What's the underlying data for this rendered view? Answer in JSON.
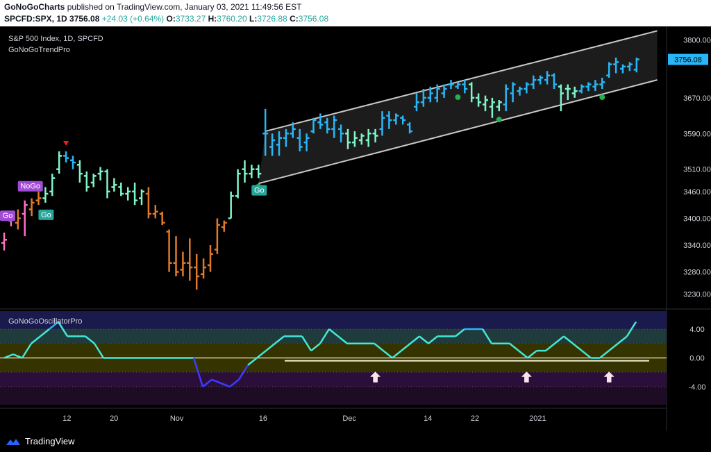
{
  "header": {
    "publisher": "GoNoGoCharts",
    "published_text": "published on TradingView.com, January 03, 2021 11:49:56 EST",
    "symbol": "SPCFD:SPX, 1D",
    "last": "3756.08",
    "change": "+24.03 (+0.64%)",
    "open_label": "O:",
    "open": "3733.27",
    "high_label": "H:",
    "high": "3760.20",
    "low_label": "L:",
    "low": "3726.88",
    "close_label": "C:",
    "close": "3756.08"
  },
  "main_pane": {
    "title": "S&P 500 Index, 1D, SPCFD",
    "indicator": "GoNoGoTrendPro",
    "price_badge": "3756.08",
    "badges": [
      {
        "text": "NoGo",
        "bar": 3
      },
      {
        "text": "Go",
        "bar": 6
      },
      {
        "text": "Go",
        "bar": 37
      },
      {
        "text": "Go",
        "bar": -1
      }
    ]
  },
  "oscillator_pane": {
    "title": "GoNoGoOscillatorPro"
  },
  "footer": {
    "brand": "TradingView"
  },
  "colors": {
    "bright_blue": "#29b6f6",
    "dark_blue": "#1e88e5",
    "aqua": "#80f5c8",
    "orange": "#e07a2a",
    "pink": "#ff70c0",
    "purple": "#a24bd5",
    "green_dot": "#22b14c",
    "red_arrow": "#ff1a1a",
    "osc_line": "#44e6d8",
    "osc_low": "#3c3cff"
  },
  "chart_data": [
    {
      "type": "ohlc",
      "price_axis": {
        "min": 3200,
        "max": 3830,
        "ticks": [
          3800,
          3670,
          3590,
          3510,
          3460,
          3400,
          3340,
          3280,
          3230
        ]
      },
      "time_axis_labels": [
        "12",
        "20",
        "Nov",
        "16",
        "Dec",
        "14",
        "22",
        "2021"
      ],
      "time_axis_positions": [
        8,
        14,
        22,
        33,
        44,
        54,
        60,
        68
      ],
      "bars": [
        {
          "o": 3345,
          "h": 3368,
          "l": 3328,
          "c": 3352,
          "color": "pink"
        },
        {
          "o": 3395,
          "h": 3408,
          "l": 3382,
          "c": 3400,
          "color": "pink"
        },
        {
          "o": 3390,
          "h": 3420,
          "l": 3375,
          "c": 3400,
          "color": "orange"
        },
        {
          "o": 3410,
          "h": 3440,
          "l": 3360,
          "c": 3430,
          "color": "pink"
        },
        {
          "o": 3420,
          "h": 3445,
          "l": 3405,
          "c": 3435,
          "color": "orange"
        },
        {
          "o": 3440,
          "h": 3460,
          "l": 3430,
          "c": 3445,
          "color": "orange"
        },
        {
          "o": 3445,
          "h": 3470,
          "l": 3435,
          "c": 3455,
          "color": "aqua"
        },
        {
          "o": 3460,
          "h": 3500,
          "l": 3450,
          "c": 3490,
          "color": "aqua"
        },
        {
          "o": 3510,
          "h": 3550,
          "l": 3500,
          "c": 3540,
          "color": "aqua"
        },
        {
          "o": 3540,
          "h": 3550,
          "l": 3525,
          "c": 3535,
          "color": "bright_blue"
        },
        {
          "o": 3530,
          "h": 3540,
          "l": 3510,
          "c": 3525,
          "color": "bright_blue"
        },
        {
          "o": 3520,
          "h": 3530,
          "l": 3480,
          "c": 3500,
          "color": "aqua"
        },
        {
          "o": 3495,
          "h": 3505,
          "l": 3460,
          "c": 3470,
          "color": "aqua"
        },
        {
          "o": 3480,
          "h": 3500,
          "l": 3470,
          "c": 3495,
          "color": "aqua"
        },
        {
          "o": 3500,
          "h": 3515,
          "l": 3485,
          "c": 3505,
          "color": "aqua"
        },
        {
          "o": 3505,
          "h": 3510,
          "l": 3445,
          "c": 3460,
          "color": "aqua"
        },
        {
          "o": 3470,
          "h": 3490,
          "l": 3460,
          "c": 3475,
          "color": "aqua"
        },
        {
          "o": 3470,
          "h": 3480,
          "l": 3450,
          "c": 3455,
          "color": "aqua"
        },
        {
          "o": 3455,
          "h": 3470,
          "l": 3440,
          "c": 3460,
          "color": "aqua"
        },
        {
          "o": 3460,
          "h": 3480,
          "l": 3430,
          "c": 3440,
          "color": "aqua"
        },
        {
          "o": 3445,
          "h": 3465,
          "l": 3430,
          "c": 3460,
          "color": "aqua"
        },
        {
          "o": 3455,
          "h": 3470,
          "l": 3400,
          "c": 3410,
          "color": "orange"
        },
        {
          "o": 3410,
          "h": 3430,
          "l": 3400,
          "c": 3415,
          "color": "orange"
        },
        {
          "o": 3410,
          "h": 3415,
          "l": 3385,
          "c": 3390,
          "color": "orange"
        },
        {
          "o": 3370,
          "h": 3375,
          "l": 3280,
          "c": 3300,
          "color": "orange"
        },
        {
          "o": 3300,
          "h": 3360,
          "l": 3270,
          "c": 3280,
          "color": "orange"
        },
        {
          "o": 3285,
          "h": 3325,
          "l": 3270,
          "c": 3300,
          "color": "orange"
        },
        {
          "o": 3300,
          "h": 3355,
          "l": 3260,
          "c": 3290,
          "color": "orange"
        },
        {
          "o": 3290,
          "h": 3320,
          "l": 3240,
          "c": 3270,
          "color": "orange"
        },
        {
          "o": 3275,
          "h": 3310,
          "l": 3265,
          "c": 3290,
          "color": "orange"
        },
        {
          "o": 3295,
          "h": 3340,
          "l": 3280,
          "c": 3320,
          "color": "orange"
        },
        {
          "o": 3330,
          "h": 3400,
          "l": 3320,
          "c": 3385,
          "color": "orange"
        },
        {
          "o": 3380,
          "h": 3395,
          "l": 3370,
          "c": 3390,
          "color": "orange"
        },
        {
          "o": 3400,
          "h": 3460,
          "l": 3400,
          "c": 3450,
          "color": "aqua"
        },
        {
          "o": 3450,
          "h": 3510,
          "l": 3445,
          "c": 3500,
          "color": "aqua"
        },
        {
          "o": 3510,
          "h": 3530,
          "l": 3480,
          "c": 3500,
          "color": "aqua"
        },
        {
          "o": 3500,
          "h": 3520,
          "l": 3490,
          "c": 3510,
          "color": "aqua"
        },
        {
          "o": 3510,
          "h": 3520,
          "l": 3490,
          "c": 3500,
          "color": "aqua"
        },
        {
          "o": 3590,
          "h": 3645,
          "l": 3540,
          "c": 3590,
          "color": "bright_blue"
        },
        {
          "o": 3560,
          "h": 3590,
          "l": 3540,
          "c": 3575,
          "color": "bright_blue"
        },
        {
          "o": 3565,
          "h": 3595,
          "l": 3540,
          "c": 3580,
          "color": "bright_blue"
        },
        {
          "o": 3580,
          "h": 3600,
          "l": 3560,
          "c": 3590,
          "color": "bright_blue"
        },
        {
          "o": 3590,
          "h": 3615,
          "l": 3580,
          "c": 3600,
          "color": "bright_blue"
        },
        {
          "o": 3580,
          "h": 3600,
          "l": 3550,
          "c": 3560,
          "color": "bright_blue"
        },
        {
          "o": 3570,
          "h": 3590,
          "l": 3550,
          "c": 3580,
          "color": "bright_blue"
        },
        {
          "o": 3595,
          "h": 3625,
          "l": 3590,
          "c": 3620,
          "color": "bright_blue"
        },
        {
          "o": 3615,
          "h": 3635,
          "l": 3600,
          "c": 3610,
          "color": "bright_blue"
        },
        {
          "o": 3615,
          "h": 3625,
          "l": 3590,
          "c": 3600,
          "color": "bright_blue"
        },
        {
          "o": 3600,
          "h": 3630,
          "l": 3580,
          "c": 3620,
          "color": "bright_blue"
        },
        {
          "o": 3600,
          "h": 3610,
          "l": 3570,
          "c": 3590,
          "color": "bright_blue"
        },
        {
          "o": 3590,
          "h": 3600,
          "l": 3555,
          "c": 3570,
          "color": "aqua"
        },
        {
          "o": 3570,
          "h": 3595,
          "l": 3560,
          "c": 3580,
          "color": "aqua"
        },
        {
          "o": 3575,
          "h": 3590,
          "l": 3565,
          "c": 3585,
          "color": "aqua"
        },
        {
          "o": 3575,
          "h": 3600,
          "l": 3560,
          "c": 3590,
          "color": "aqua"
        },
        {
          "o": 3590,
          "h": 3600,
          "l": 3570,
          "c": 3585,
          "color": "aqua"
        },
        {
          "o": 3600,
          "h": 3640,
          "l": 3585,
          "c": 3625,
          "color": "bright_blue"
        },
        {
          "o": 3630,
          "h": 3640,
          "l": 3600,
          "c": 3620,
          "color": "bright_blue"
        },
        {
          "o": 3620,
          "h": 3635,
          "l": 3610,
          "c": 3630,
          "color": "bright_blue"
        },
        {
          "o": 3625,
          "h": 3630,
          "l": 3610,
          "c": 3620,
          "color": "bright_blue"
        },
        {
          "o": 3610,
          "h": 3615,
          "l": 3590,
          "c": 3595,
          "color": "bright_blue"
        },
        {
          "o": 3650,
          "h": 3680,
          "l": 3640,
          "c": 3660,
          "color": "bright_blue"
        },
        {
          "o": 3660,
          "h": 3690,
          "l": 3650,
          "c": 3670,
          "color": "bright_blue"
        },
        {
          "o": 3670,
          "h": 3695,
          "l": 3660,
          "c": 3680,
          "color": "bright_blue"
        },
        {
          "o": 3670,
          "h": 3700,
          "l": 3660,
          "c": 3690,
          "color": "bright_blue"
        },
        {
          "o": 3680,
          "h": 3700,
          "l": 3670,
          "c": 3690,
          "color": "bright_blue"
        },
        {
          "o": 3700,
          "h": 3710,
          "l": 3690,
          "c": 3700,
          "color": "bright_blue"
        },
        {
          "o": 3695,
          "h": 3705,
          "l": 3690,
          "c": 3700,
          "color": "bright_blue"
        },
        {
          "o": 3700,
          "h": 3710,
          "l": 3680,
          "c": 3690,
          "color": "bright_blue"
        },
        {
          "o": 3700,
          "h": 3705,
          "l": 3660,
          "c": 3670,
          "color": "aqua"
        },
        {
          "o": 3670,
          "h": 3680,
          "l": 3650,
          "c": 3660,
          "color": "aqua"
        },
        {
          "o": 3655,
          "h": 3675,
          "l": 3640,
          "c": 3665,
          "color": "aqua"
        },
        {
          "o": 3650,
          "h": 3670,
          "l": 3625,
          "c": 3660,
          "color": "aqua"
        },
        {
          "o": 3650,
          "h": 3665,
          "l": 3640,
          "c": 3660,
          "color": "aqua"
        },
        {
          "o": 3655,
          "h": 3700,
          "l": 3640,
          "c": 3690,
          "color": "bright_blue"
        },
        {
          "o": 3680,
          "h": 3705,
          "l": 3660,
          "c": 3700,
          "color": "bright_blue"
        },
        {
          "o": 3685,
          "h": 3695,
          "l": 3675,
          "c": 3690,
          "color": "bright_blue"
        },
        {
          "o": 3690,
          "h": 3705,
          "l": 3680,
          "c": 3700,
          "color": "bright_blue"
        },
        {
          "o": 3700,
          "h": 3720,
          "l": 3690,
          "c": 3710,
          "color": "bright_blue"
        },
        {
          "o": 3710,
          "h": 3720,
          "l": 3700,
          "c": 3715,
          "color": "bright_blue"
        },
        {
          "o": 3710,
          "h": 3730,
          "l": 3700,
          "c": 3720,
          "color": "bright_blue"
        },
        {
          "o": 3720,
          "h": 3725,
          "l": 3690,
          "c": 3700,
          "color": "bright_blue"
        },
        {
          "o": 3695,
          "h": 3700,
          "l": 3640,
          "c": 3680,
          "color": "aqua"
        },
        {
          "o": 3690,
          "h": 3700,
          "l": 3665,
          "c": 3690,
          "color": "aqua"
        },
        {
          "o": 3680,
          "h": 3695,
          "l": 3670,
          "c": 3685,
          "color": "aqua"
        },
        {
          "o": 3685,
          "h": 3700,
          "l": 3680,
          "c": 3695,
          "color": "bright_blue"
        },
        {
          "o": 3695,
          "h": 3705,
          "l": 3685,
          "c": 3700,
          "color": "bright_blue"
        },
        {
          "o": 3695,
          "h": 3710,
          "l": 3685,
          "c": 3700,
          "color": "bright_blue"
        },
        {
          "o": 3700,
          "h": 3715,
          "l": 3690,
          "c": 3705,
          "color": "bright_blue"
        },
        {
          "o": 3720,
          "h": 3750,
          "l": 3715,
          "c": 3745,
          "color": "bright_blue"
        },
        {
          "o": 3745,
          "h": 3760,
          "l": 3725,
          "c": 3750,
          "color": "bright_blue"
        },
        {
          "o": 3735,
          "h": 3745,
          "l": 3725,
          "c": 3740,
          "color": "bright_blue"
        },
        {
          "o": 3740,
          "h": 3750,
          "l": 3730,
          "c": 3745,
          "color": "bright_blue"
        },
        {
          "o": 3733,
          "h": 3760,
          "l": 3727,
          "c": 3756,
          "color": "bright_blue"
        }
      ],
      "go_dots": [
        37,
        66,
        72,
        87
      ],
      "sell_arrow_bar": 9,
      "trend_channel": {
        "upper": [
          {
            "bar": 38,
            "price": 3595
          },
          {
            "bar": 95,
            "price": 3820
          }
        ],
        "lower": [
          {
            "bar": 37,
            "price": 3478
          },
          {
            "bar": 95,
            "price": 3710
          }
        ]
      }
    },
    {
      "type": "line",
      "name": "GoNoGoOscillatorPro",
      "y_ticks": [
        4.0,
        0.0,
        -4.0
      ],
      "ylim": [
        -6.5,
        6.5
      ],
      "values": [
        0,
        0.5,
        0,
        2,
        3,
        4,
        5,
        3,
        3,
        3,
        2,
        0,
        0,
        0,
        0,
        0,
        0,
        0,
        0,
        0,
        0,
        0,
        -4,
        -3,
        -3.5,
        -4,
        -3,
        -1,
        0,
        1,
        2,
        3,
        3,
        3,
        1,
        2,
        4,
        3,
        2,
        2,
        2,
        2,
        1,
        0,
        1,
        2,
        3,
        2,
        3,
        3,
        3,
        4,
        4,
        4,
        2,
        2,
        2,
        1,
        0,
        1,
        1,
        2,
        3,
        2,
        1,
        0,
        0,
        1,
        2,
        3,
        5
      ],
      "baseline_segment": [
        {
          "i": 44,
          "v": -0.4
        },
        {
          "i": 98,
          "v": -0.4
        }
      ],
      "up_arrows": [
        54,
        76,
        88
      ]
    }
  ]
}
